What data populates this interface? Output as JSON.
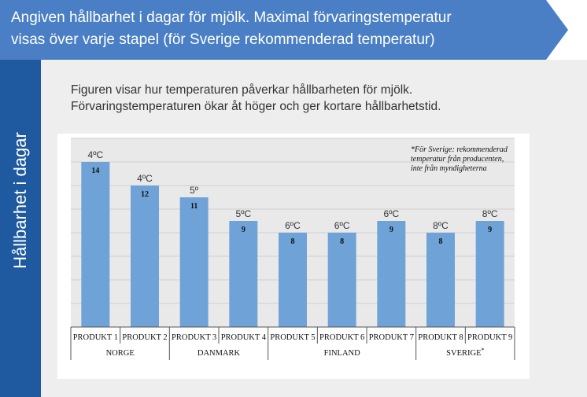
{
  "header": {
    "title_line1": "Angiven hållbarhet i dagar för mjölk. Maximal förvaringstemperatur",
    "title_line2": "visas över varje stapel (för Sverige rekommenderad temperatur)"
  },
  "side": {
    "label": "Hållbarhet i dagar"
  },
  "caption": {
    "line1": "Figuren visar hur temperaturen  påverkar hållbarheten  för mjölk.",
    "line2": "Förvaringstemperaturen  ökar åt höger och ger kortare hållbarhetstid."
  },
  "colors": {
    "banner": "#4a7fc5",
    "side_panel": "#1f5aa0",
    "bar": "#6fa3d8"
  },
  "chart_data": {
    "type": "bar",
    "ylim": [
      0,
      16
    ],
    "grid": true,
    "categories": [
      "PRODUKT 1",
      "PRODUKT 2",
      "PRODUKT 3",
      "PRODUKT 4",
      "PRODUKT 5",
      "PRODUKT 6",
      "PRODUKT 7",
      "PRODUKT 8",
      "PRODUKT 9"
    ],
    "values": [
      14,
      12,
      11,
      9,
      8,
      8,
      9,
      8,
      9
    ],
    "temperatures": [
      "4ºC",
      "4ºC",
      "5º",
      "5ºC",
      "6ºC",
      "6ºC",
      "6ºC",
      "8ºC",
      "8ºC"
    ],
    "groups": [
      {
        "label": "NORGE",
        "count": 2
      },
      {
        "label": "DANMARK",
        "count": 2
      },
      {
        "label": "FINLAND",
        "count": 3
      },
      {
        "label": "SVERIGE",
        "sup": "*",
        "count": 2
      }
    ],
    "note": "*För Sverige: rekommenderad temperatur från producenten, inte från myndigheterna"
  }
}
